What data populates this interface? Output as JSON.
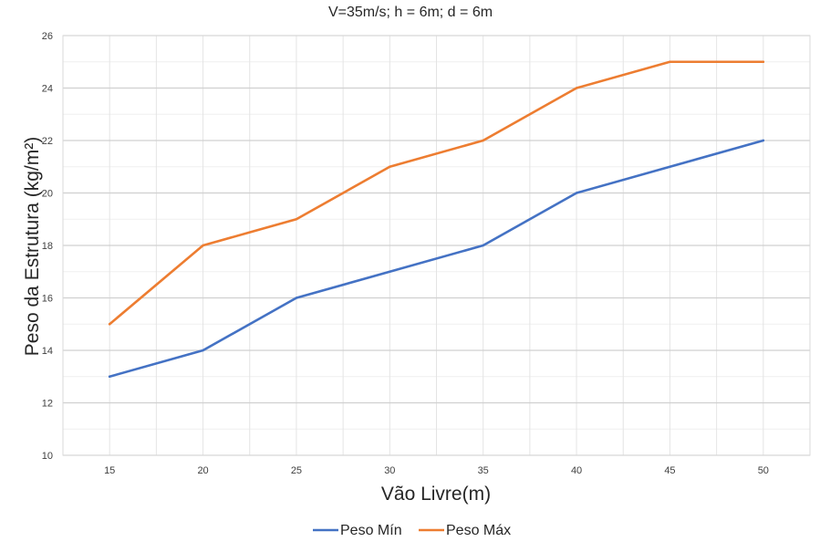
{
  "chart_data": {
    "type": "line",
    "title": "V=35m/s; h = 6m; d = 6m",
    "xlabel": "Vão Livre(m)",
    "ylabel": "Peso da Estrutura (kg/m²)",
    "x": [
      15,
      20,
      25,
      30,
      35,
      40,
      45,
      50
    ],
    "xlim": [
      12.5,
      52.5
    ],
    "ylim": [
      10,
      26
    ],
    "yticks": [
      10,
      12,
      14,
      16,
      18,
      20,
      22,
      24,
      26
    ],
    "grid": true,
    "legend_position": "bottom",
    "series": [
      {
        "name": "Peso Mín",
        "color": "#4472C4",
        "values": [
          13,
          14,
          16,
          17,
          18,
          20,
          21,
          22
        ]
      },
      {
        "name": "Peso Máx",
        "color": "#ED7D31",
        "values": [
          15,
          18,
          19,
          21,
          22,
          24,
          25,
          25
        ]
      }
    ]
  }
}
